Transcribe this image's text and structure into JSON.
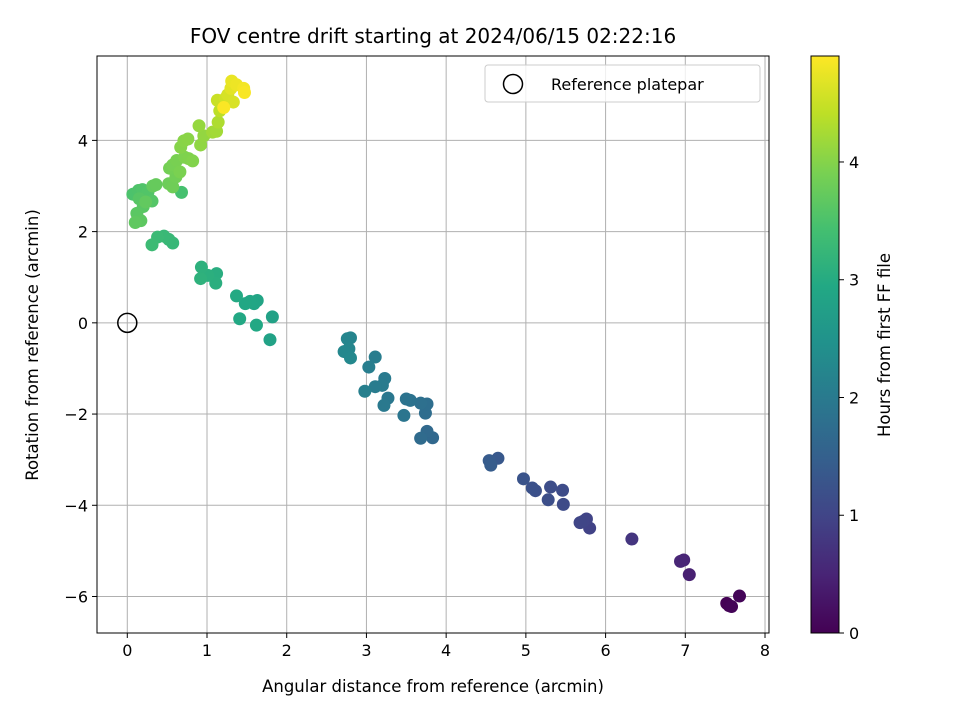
{
  "chart_data": {
    "type": "scatter",
    "title": "FOV centre drift starting at 2024/06/15 02:22:16",
    "xlabel": "Angular distance from reference (arcmin)",
    "ylabel": "Rotation from reference (arcmin)",
    "xlim": [
      -0.38,
      8.05
    ],
    "ylim": [
      -6.8,
      5.85
    ],
    "grid": true,
    "x_ticks": [
      0,
      1,
      2,
      3,
      4,
      5,
      6,
      7,
      8
    ],
    "y_ticks": [
      -6,
      -4,
      -2,
      0,
      2,
      4
    ],
    "x_tick_labels": [
      "0",
      "1",
      "2",
      "3",
      "4",
      "5",
      "6",
      "7",
      "8"
    ],
    "y_tick_labels": [
      "−6",
      "−4",
      "−2",
      "0",
      "2",
      "4"
    ],
    "legend": {
      "position": "top-right",
      "entries": [
        "Reference platepar"
      ]
    },
    "reference_point": {
      "x": 0,
      "y": 0
    },
    "colorbar": {
      "label": "Hours from first FF file",
      "colormap": "viridis",
      "range": [
        0,
        4.9
      ],
      "ticks": [
        0,
        1,
        2,
        3,
        4
      ],
      "tick_labels": [
        "0",
        "1",
        "2",
        "3",
        "4"
      ]
    },
    "points": [
      {
        "x": 7.55,
        "y": -6.2,
        "t": 0.0
      },
      {
        "x": 7.52,
        "y": -6.15,
        "t": 0.02
      },
      {
        "x": 7.58,
        "y": -6.22,
        "t": 0.04
      },
      {
        "x": 7.68,
        "y": -5.99,
        "t": 0.06
      },
      {
        "x": 7.05,
        "y": -5.52,
        "t": 0.45
      },
      {
        "x": 6.98,
        "y": -5.2,
        "t": 0.5
      },
      {
        "x": 6.94,
        "y": -5.23,
        "t": 0.52
      },
      {
        "x": 6.33,
        "y": -4.74,
        "t": 0.75
      },
      {
        "x": 5.8,
        "y": -4.5,
        "t": 0.95
      },
      {
        "x": 5.76,
        "y": -4.3,
        "t": 0.98
      },
      {
        "x": 5.72,
        "y": -4.35,
        "t": 1.0
      },
      {
        "x": 5.68,
        "y": -4.38,
        "t": 1.02
      },
      {
        "x": 5.47,
        "y": -3.98,
        "t": 1.1
      },
      {
        "x": 5.46,
        "y": -3.67,
        "t": 1.12
      },
      {
        "x": 5.31,
        "y": -3.6,
        "t": 1.15
      },
      {
        "x": 5.28,
        "y": -3.88,
        "t": 1.17
      },
      {
        "x": 5.12,
        "y": -3.68,
        "t": 1.2
      },
      {
        "x": 5.08,
        "y": -3.62,
        "t": 1.22
      },
      {
        "x": 4.97,
        "y": -3.42,
        "t": 1.25
      },
      {
        "x": 4.65,
        "y": -2.97,
        "t": 1.35
      },
      {
        "x": 4.54,
        "y": -3.02,
        "t": 1.4
      },
      {
        "x": 4.56,
        "y": -3.12,
        "t": 1.42
      },
      {
        "x": 3.83,
        "y": -2.52,
        "t": 1.65
      },
      {
        "x": 3.76,
        "y": -2.38,
        "t": 1.67
      },
      {
        "x": 3.68,
        "y": -2.53,
        "t": 1.7
      },
      {
        "x": 3.74,
        "y": -1.98,
        "t": 1.75
      },
      {
        "x": 3.76,
        "y": -1.78,
        "t": 1.77
      },
      {
        "x": 3.68,
        "y": -1.76,
        "t": 1.8
      },
      {
        "x": 3.55,
        "y": -1.7,
        "t": 1.85
      },
      {
        "x": 3.5,
        "y": -1.67,
        "t": 1.87
      },
      {
        "x": 3.47,
        "y": -2.03,
        "t": 1.9
      },
      {
        "x": 3.27,
        "y": -1.65,
        "t": 1.95
      },
      {
        "x": 3.22,
        "y": -1.81,
        "t": 1.97
      },
      {
        "x": 3.23,
        "y": -1.22,
        "t": 2.0
      },
      {
        "x": 3.2,
        "y": -1.37,
        "t": 2.02
      },
      {
        "x": 3.11,
        "y": -1.4,
        "t": 2.04
      },
      {
        "x": 3.11,
        "y": -0.75,
        "t": 2.06
      },
      {
        "x": 3.03,
        "y": -0.97,
        "t": 2.08
      },
      {
        "x": 2.98,
        "y": -1.5,
        "t": 2.1
      },
      {
        "x": 2.8,
        "y": -0.33,
        "t": 2.2
      },
      {
        "x": 2.76,
        "y": -0.35,
        "t": 2.22
      },
      {
        "x": 2.78,
        "y": -0.57,
        "t": 2.24
      },
      {
        "x": 2.72,
        "y": -0.63,
        "t": 2.26
      },
      {
        "x": 2.8,
        "y": -0.77,
        "t": 2.28
      },
      {
        "x": 1.82,
        "y": 0.13,
        "t": 2.8
      },
      {
        "x": 1.79,
        "y": -0.37,
        "t": 2.82
      },
      {
        "x": 1.63,
        "y": 0.49,
        "t": 2.85
      },
      {
        "x": 1.59,
        "y": 0.42,
        "t": 2.87
      },
      {
        "x": 1.54,
        "y": 0.47,
        "t": 2.89
      },
      {
        "x": 1.48,
        "y": 0.42,
        "t": 2.91
      },
      {
        "x": 1.62,
        "y": -0.05,
        "t": 2.93
      },
      {
        "x": 1.41,
        "y": 0.09,
        "t": 2.95
      },
      {
        "x": 1.37,
        "y": 0.59,
        "t": 2.97
      },
      {
        "x": 1.12,
        "y": 1.08,
        "t": 3.05
      },
      {
        "x": 1.11,
        "y": 0.87,
        "t": 3.07
      },
      {
        "x": 1.01,
        "y": 1.04,
        "t": 3.09
      },
      {
        "x": 0.93,
        "y": 1.22,
        "t": 3.11
      },
      {
        "x": 0.92,
        "y": 0.97,
        "t": 3.13
      },
      {
        "x": 0.57,
        "y": 1.75,
        "t": 3.25
      },
      {
        "x": 0.52,
        "y": 1.83,
        "t": 3.27
      },
      {
        "x": 0.46,
        "y": 1.9,
        "t": 3.29
      },
      {
        "x": 0.38,
        "y": 1.88,
        "t": 3.31
      },
      {
        "x": 0.31,
        "y": 1.71,
        "t": 3.33
      },
      {
        "x": 0.68,
        "y": 2.86,
        "t": 3.45
      },
      {
        "x": 0.07,
        "y": 2.82,
        "t": 3.5
      },
      {
        "x": 0.14,
        "y": 2.9,
        "t": 3.52
      },
      {
        "x": 0.19,
        "y": 2.92,
        "t": 3.54
      },
      {
        "x": 0.26,
        "y": 2.87,
        "t": 3.56
      },
      {
        "x": 0.31,
        "y": 2.67,
        "t": 3.58
      },
      {
        "x": 0.15,
        "y": 2.72,
        "t": 3.6
      },
      {
        "x": 0.2,
        "y": 2.55,
        "t": 3.62
      },
      {
        "x": 0.12,
        "y": 2.4,
        "t": 3.64
      },
      {
        "x": 0.17,
        "y": 2.24,
        "t": 3.66
      },
      {
        "x": 0.1,
        "y": 2.2,
        "t": 3.68
      },
      {
        "x": 0.23,
        "y": 2.65,
        "t": 3.7
      },
      {
        "x": 0.32,
        "y": 3.0,
        "t": 3.72
      },
      {
        "x": 0.36,
        "y": 3.03,
        "t": 3.74
      },
      {
        "x": 0.52,
        "y": 3.05,
        "t": 3.8
      },
      {
        "x": 0.57,
        "y": 2.98,
        "t": 3.82
      },
      {
        "x": 0.61,
        "y": 3.2,
        "t": 3.84
      },
      {
        "x": 0.53,
        "y": 3.39,
        "t": 3.86
      },
      {
        "x": 0.57,
        "y": 3.46,
        "t": 3.88
      },
      {
        "x": 0.62,
        "y": 3.56,
        "t": 3.9
      },
      {
        "x": 0.66,
        "y": 3.31,
        "t": 3.92
      },
      {
        "x": 0.72,
        "y": 3.63,
        "t": 3.94
      },
      {
        "x": 0.77,
        "y": 3.6,
        "t": 3.96
      },
      {
        "x": 0.82,
        "y": 3.55,
        "t": 3.98
      },
      {
        "x": 0.67,
        "y": 3.85,
        "t": 4.0
      },
      {
        "x": 0.71,
        "y": 3.99,
        "t": 4.02
      },
      {
        "x": 0.76,
        "y": 4.03,
        "t": 4.04
      },
      {
        "x": 0.92,
        "y": 3.9,
        "t": 4.08
      },
      {
        "x": 0.96,
        "y": 4.1,
        "t": 4.1
      },
      {
        "x": 0.9,
        "y": 4.32,
        "t": 4.12
      },
      {
        "x": 1.07,
        "y": 4.18,
        "t": 4.2
      },
      {
        "x": 1.12,
        "y": 4.2,
        "t": 4.22
      },
      {
        "x": 1.14,
        "y": 4.4,
        "t": 4.3
      },
      {
        "x": 1.16,
        "y": 4.65,
        "t": 4.4
      },
      {
        "x": 1.2,
        "y": 4.75,
        "t": 4.45
      },
      {
        "x": 1.13,
        "y": 4.88,
        "t": 4.5
      },
      {
        "x": 1.23,
        "y": 4.92,
        "t": 4.55
      },
      {
        "x": 1.26,
        "y": 5.0,
        "t": 4.6
      },
      {
        "x": 1.33,
        "y": 4.84,
        "t": 4.62
      },
      {
        "x": 1.3,
        "y": 5.14,
        "t": 4.7
      },
      {
        "x": 1.31,
        "y": 5.3,
        "t": 4.75
      },
      {
        "x": 1.37,
        "y": 5.22,
        "t": 4.78
      },
      {
        "x": 1.46,
        "y": 5.14,
        "t": 4.82
      },
      {
        "x": 1.47,
        "y": 5.05,
        "t": 4.86
      },
      {
        "x": 1.21,
        "y": 4.72,
        "t": 4.88
      }
    ]
  }
}
